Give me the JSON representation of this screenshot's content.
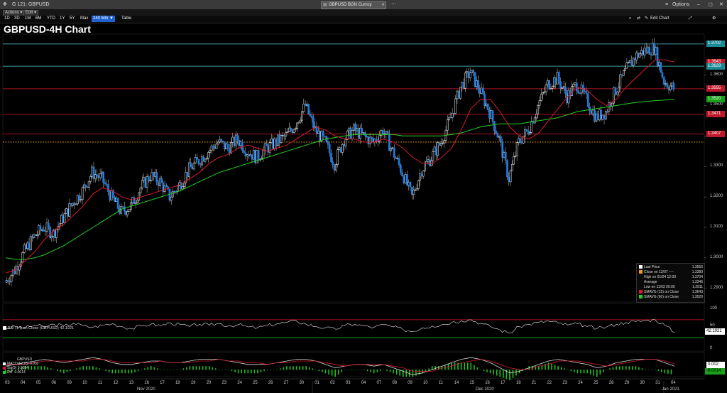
{
  "window": {
    "id_label": "G 121: GBPUSD",
    "ticker": "GBPUSD BGN Curncy",
    "options_label": "Options",
    "controls": [
      "–",
      "◻",
      "✕"
    ]
  },
  "menubar": {
    "actions_label": "Actions",
    "edit_label": "Edit"
  },
  "toolbar": {
    "ranges": [
      "1D",
      "3D",
      "1M",
      "6M",
      "YTD",
      "1Y",
      "5Y",
      "Max"
    ],
    "interval_label": "240 Min ▼",
    "table_label": "Table",
    "edit_chart_label": "Edit Chart"
  },
  "colors": {
    "candle_up": "#ffffff",
    "candle_down": "#1e7be0",
    "sma15": "#d81b2e",
    "sma60": "#22d022",
    "cyan_line": "#4fd0d8",
    "red_line": "#d81b2e",
    "orange_line": "#e89a2a"
  },
  "chart_data": [
    {
      "type": "candlestick",
      "title": "GBPUSD-4H Chart",
      "ylim": [
        1.2855,
        1.3725
      ],
      "y_ticks": [
        "1.3600",
        "1.3500",
        "1.3400",
        "1.3300",
        "1.3200",
        "1.3100",
        "1.3000",
        "1.2900"
      ],
      "x_day_labels": [
        "03",
        "04",
        "05",
        "06",
        "09",
        "10",
        "11",
        "12",
        "13",
        "16",
        "17",
        "18",
        "19",
        "20",
        "23",
        "24",
        "25",
        "26",
        "27",
        "30",
        "01",
        "02",
        "03",
        "04",
        "07",
        "08",
        "09",
        "10",
        "11",
        "14",
        "15",
        "16",
        "17",
        "18",
        "21",
        "22",
        "23",
        "24",
        "25",
        "28",
        "29",
        "30",
        "31",
        "04"
      ],
      "x_month_labels": [
        "Nov 2020",
        "Dec 2020",
        "Jan 2021"
      ],
      "close_series": [
        1.292,
        1.296,
        1.302,
        1.307,
        1.31,
        1.308,
        1.313,
        1.318,
        1.322,
        1.328,
        1.326,
        1.32,
        1.315,
        1.317,
        1.323,
        1.327,
        1.325,
        1.32,
        1.324,
        1.329,
        1.332,
        1.335,
        1.338,
        1.336,
        1.339,
        1.335,
        1.333,
        1.336,
        1.338,
        1.34,
        1.344,
        1.35,
        1.342,
        1.338,
        1.331,
        1.339,
        1.342,
        1.34,
        1.338,
        1.342,
        1.335,
        1.328,
        1.32,
        1.329,
        1.333,
        1.338,
        1.346,
        1.356,
        1.361,
        1.355,
        1.348,
        1.339,
        1.326,
        1.338,
        1.342,
        1.35,
        1.357,
        1.359,
        1.353,
        1.357,
        1.352,
        1.346,
        1.348,
        1.355,
        1.361,
        1.366,
        1.368,
        1.369,
        1.358,
        1.3556
      ],
      "sma15_series": [
        1.295,
        1.296,
        1.299,
        1.302,
        1.306,
        1.309,
        1.311,
        1.314,
        1.317,
        1.321,
        1.323,
        1.322,
        1.32,
        1.319,
        1.32,
        1.321,
        1.322,
        1.323,
        1.324,
        1.326,
        1.328,
        1.331,
        1.333,
        1.334,
        1.336,
        1.337,
        1.336,
        1.335,
        1.336,
        1.337,
        1.339,
        1.341,
        1.343,
        1.342,
        1.34,
        1.339,
        1.339,
        1.338,
        1.338,
        1.339,
        1.338,
        1.336,
        1.333,
        1.331,
        1.331,
        1.333,
        1.336,
        1.342,
        1.349,
        1.352,
        1.352,
        1.348,
        1.343,
        1.34,
        1.339,
        1.341,
        1.345,
        1.349,
        1.353,
        1.356,
        1.355,
        1.352,
        1.35,
        1.352,
        1.356,
        1.359,
        1.362,
        1.365,
        1.365,
        1.3643
      ],
      "sma60_series": [
        1.3,
        1.2995,
        1.2995,
        1.3,
        1.301,
        1.3025,
        1.304,
        1.306,
        1.308,
        1.31,
        1.312,
        1.314,
        1.316,
        1.317,
        1.318,
        1.319,
        1.32,
        1.321,
        1.322,
        1.3235,
        1.325,
        1.3265,
        1.328,
        1.329,
        1.33,
        1.331,
        1.332,
        1.333,
        1.334,
        1.335,
        1.336,
        1.337,
        1.338,
        1.339,
        1.3395,
        1.34,
        1.3405,
        1.3405,
        1.3405,
        1.3405,
        1.3405,
        1.34,
        1.34,
        1.34,
        1.34,
        1.34,
        1.3405,
        1.341,
        1.342,
        1.343,
        1.3435,
        1.344,
        1.344,
        1.344,
        1.3445,
        1.345,
        1.3455,
        1.346,
        1.347,
        1.348,
        1.3485,
        1.349,
        1.3495,
        1.35,
        1.3505,
        1.351,
        1.3513,
        1.3516,
        1.3518,
        1.352
      ],
      "horizontal_lines": [
        {
          "label": "1.3702",
          "value": 1.3702,
          "color": "#4fd0d8"
        },
        {
          "label": "1.3629",
          "value": 1.3629,
          "color": "#4fd0d8"
        },
        {
          "label": "1.3555",
          "value": 1.3555,
          "color": "#d81b2e"
        },
        {
          "label": "1.3471",
          "value": 1.3471,
          "color": "#d81b2e"
        },
        {
          "label": "1.3407",
          "value": 1.3407,
          "color": "#d81b2e"
        },
        {
          "label": "",
          "value": 1.338,
          "color": "#e89a2a"
        }
      ],
      "price_tags": [
        {
          "label": "1.3702",
          "value": 1.3702,
          "color": "#1b8a95"
        },
        {
          "label": "1.3643",
          "value": 1.3643,
          "color": "#c01828"
        },
        {
          "label": "1.3629",
          "value": 1.3629,
          "color": "#1b8a95"
        },
        {
          "label": "1.3555",
          "value": 1.3555,
          "color": "#c01828"
        },
        {
          "label": "1.3520",
          "value": 1.352,
          "color": "#18a018"
        },
        {
          "label": "1.3471",
          "value": 1.3471,
          "color": "#c01828"
        },
        {
          "label": "1.3407",
          "value": 1.3407,
          "color": "#c01828"
        }
      ],
      "legend": [
        {
          "swatch": "#ffffff",
          "label": "Last Price",
          "value": "1.3556"
        },
        {
          "swatch": "#e89a2a",
          "label": "Close on 12/07 ----",
          "value": "1.3380"
        },
        {
          "swatch": "",
          "label": "High on 01/04 12:00",
          "value": "1.3704"
        },
        {
          "swatch": "",
          "label": "Average",
          "value": "1.3346"
        },
        {
          "swatch": "",
          "label": "Low on 11/03 00:00",
          "value": "1.2911"
        },
        {
          "swatch": "#d81b2e",
          "label": "SMAVG (15)  on Close",
          "value": "1.3643"
        },
        {
          "swatch": "#22d022",
          "label": "SMAVG (60)  on Close",
          "value": "1.3520"
        }
      ]
    },
    {
      "type": "line",
      "legend_label": "RSI (14)  on Close (GBPUSD)",
      "legend_value": "42.1921",
      "ylim": [
        0,
        100
      ],
      "y_ticks": [
        "100",
        "50",
        "0"
      ],
      "series_value_label": "42.1921",
      "levels": [
        70,
        30
      ],
      "values": [
        50,
        55,
        52,
        58,
        54,
        60,
        56,
        62,
        57,
        53,
        58,
        61,
        55,
        50,
        56,
        60,
        57,
        63,
        59,
        55,
        60,
        58,
        62,
        56,
        59,
        54,
        52,
        57,
        61,
        64,
        67,
        60,
        55,
        52,
        49,
        57,
        60,
        56,
        53,
        59,
        54,
        48,
        44,
        52,
        56,
        59,
        64,
        68,
        70,
        62,
        55,
        47,
        40,
        55,
        60,
        64,
        67,
        63,
        58,
        61,
        55,
        50,
        54,
        60,
        64,
        66,
        68,
        70,
        58,
        42.19
      ]
    },
    {
      "type": "bar",
      "legend_title": "GBPUSD",
      "legend": [
        {
          "swatch": "#ffffff",
          "label": "MACD(12,26)",
          "value": "0.002"
        },
        {
          "swatch": "#d81b2e",
          "label": "Sig(9)",
          "value": "0.0034"
        },
        {
          "swatch": "#22d022",
          "label": "Diff",
          "value": "-0.0014"
        }
      ],
      "value_labels": [
        "0.002",
        "-0.0014"
      ],
      "macd": [
        0.002,
        0.003,
        0.004,
        0.005,
        0.006,
        0.005,
        0.004,
        0.005,
        0.006,
        0.007,
        0.006,
        0.004,
        0.003,
        0.003,
        0.004,
        0.005,
        0.005,
        0.004,
        0.004,
        0.005,
        0.006,
        0.006,
        0.006,
        0.005,
        0.004,
        0.003,
        0.003,
        0.003,
        0.004,
        0.005,
        0.006,
        0.006,
        0.005,
        0.003,
        0.001,
        0.002,
        0.003,
        0.003,
        0.002,
        0.003,
        0.001,
        -0.001,
        -0.003,
        -0.002,
        0.0,
        0.002,
        0.004,
        0.006,
        0.007,
        0.006,
        0.004,
        0.001,
        -0.002,
        -0.001,
        0.001,
        0.003,
        0.005,
        0.006,
        0.005,
        0.004,
        0.003,
        0.001,
        0.002,
        0.004,
        0.005,
        0.006,
        0.006,
        0.006,
        0.004,
        0.002
      ],
      "signal": [
        0.003,
        0.003,
        0.003,
        0.004,
        0.005,
        0.005,
        0.005,
        0.005,
        0.005,
        0.006,
        0.006,
        0.005,
        0.004,
        0.004,
        0.004,
        0.004,
        0.005,
        0.004,
        0.004,
        0.004,
        0.005,
        0.005,
        0.006,
        0.005,
        0.005,
        0.004,
        0.004,
        0.003,
        0.004,
        0.004,
        0.005,
        0.005,
        0.005,
        0.004,
        0.003,
        0.002,
        0.003,
        0.003,
        0.003,
        0.003,
        0.002,
        0.001,
        -0.001,
        -0.001,
        -0.001,
        0.001,
        0.002,
        0.004,
        0.005,
        0.006,
        0.005,
        0.003,
        0.001,
        0.0,
        0.0,
        0.002,
        0.003,
        0.005,
        0.005,
        0.005,
        0.004,
        0.003,
        0.002,
        0.003,
        0.004,
        0.005,
        0.006,
        0.006,
        0.005,
        0.0034
      ]
    }
  ]
}
